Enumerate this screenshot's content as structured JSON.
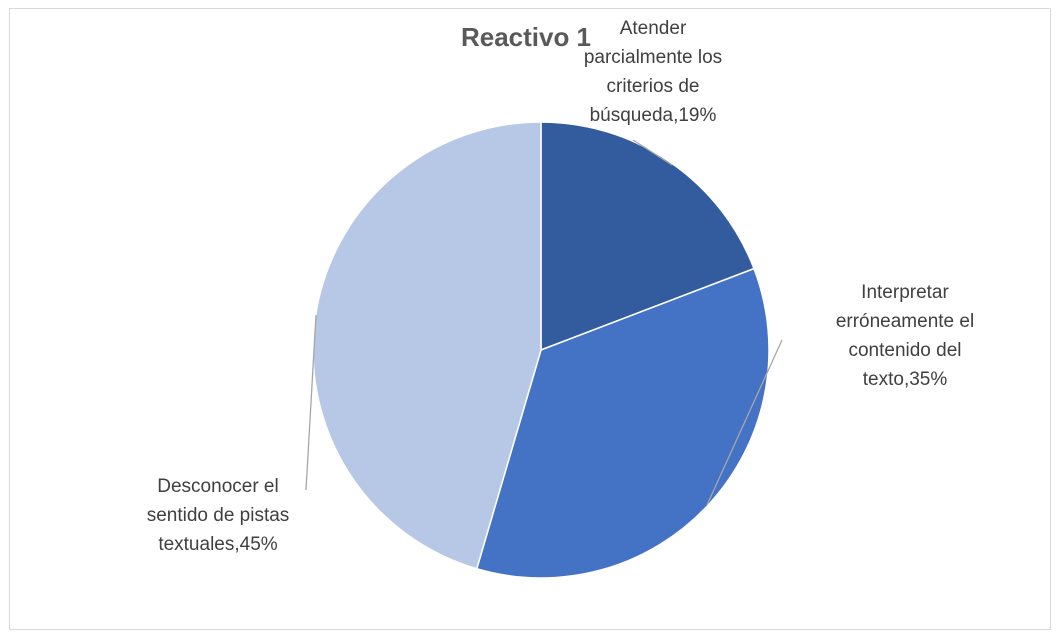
{
  "chart_data": {
    "type": "pie",
    "title": "Reactivo 1",
    "slices": [
      {
        "label_lines": [
          "Atender",
          "parcialmente los",
          "criterios de",
          "búsqueda,19%"
        ],
        "value": 19,
        "color": "#335c9f"
      },
      {
        "label_lines": [
          "Interpretar",
          "erróneamente el",
          "contenido del",
          "texto,35%"
        ],
        "value": 35,
        "color": "#4472c4"
      },
      {
        "label_lines": [
          "Desconocer el",
          "sentido de pistas",
          "textuales,45%"
        ],
        "value": 45,
        "color": "#b7c7e6"
      }
    ],
    "legend": "none"
  }
}
